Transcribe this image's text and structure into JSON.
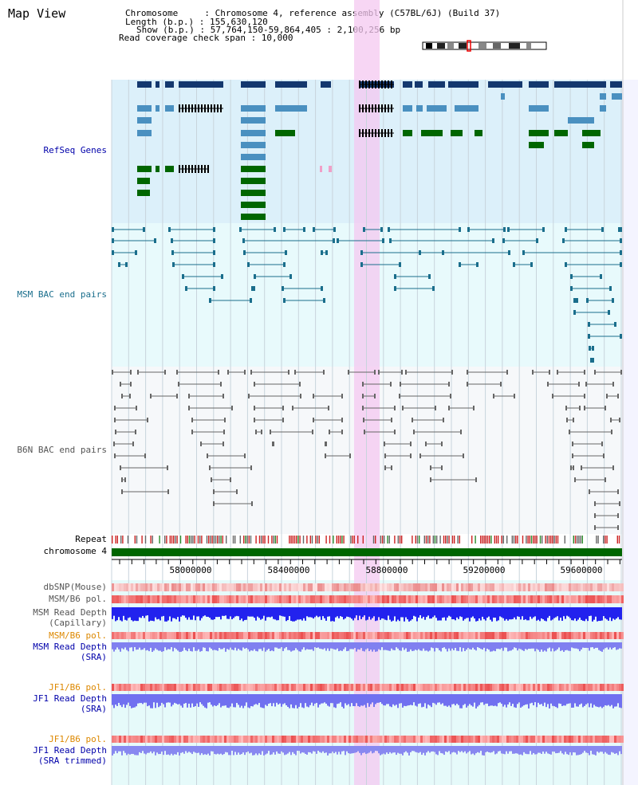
{
  "view_title": "Map View",
  "header": {
    "chromosome_line": "Chromosome     : Chromosome 4, reference assembly (C57BL/6J) (Build 37)",
    "length_line": "Length (b.p.) : 155,630,120",
    "show_line": "Show (b.p.) : 57,764,150-59,864,405 : 2,100,256 bp",
    "coverage_line": "Read coverage check span : 10,000"
  },
  "tracks": {
    "refseq": "RefSeq Genes",
    "msm_bac": "MSM BAC end pairs",
    "b6n_bac": "B6N BAC end pairs",
    "repeat": "Repeat",
    "chromosome": "chromosome 4",
    "dbsnp": "dbSNP(Mouse)",
    "msm_b6_pol_1": "MSM/B6 pol.",
    "msm_read_depth_cap_1": "MSM Read Depth",
    "msm_read_depth_cap_2": "(Capillary)",
    "msm_b6_pol_2": "MSM/B6 pol.",
    "msm_read_depth_sra_1": "MSM Read Depth",
    "msm_read_depth_sra_2": "(SRA)",
    "jf1_b6_pol_1": "JF1/B6 pol.",
    "jf1_read_depth_sra_1": "JF1 Read Depth",
    "jf1_read_depth_sra_2": "(SRA)",
    "jf1_b6_pol_2": "JF1/B6 pol.",
    "jf1_read_depth_trim_1": "JF1 Read Depth",
    "jf1_read_depth_trim_2": "(SRA trimmed)"
  },
  "axis": {
    "ticks": [
      "58000000",
      "58400000",
      "58800000",
      "59200000",
      "59600000"
    ]
  },
  "colors": {
    "refseq_bg": "#dcf0fa",
    "msm_bg": "#e8fafc",
    "b6n_bg": "#f6f8fa",
    "highlight": "#f4c8f0",
    "gene_dark": "#14386e",
    "gene_mid": "#4a90c0",
    "gene_green": "#006600",
    "msm_line": "#1a6e8c",
    "b6n_line": "#666666",
    "chrom_bar": "#006600",
    "label_blue": "#0000aa",
    "label_msm": "#1a6e8c",
    "label_gray": "#555555",
    "label_orange": "#dd8800"
  }
}
